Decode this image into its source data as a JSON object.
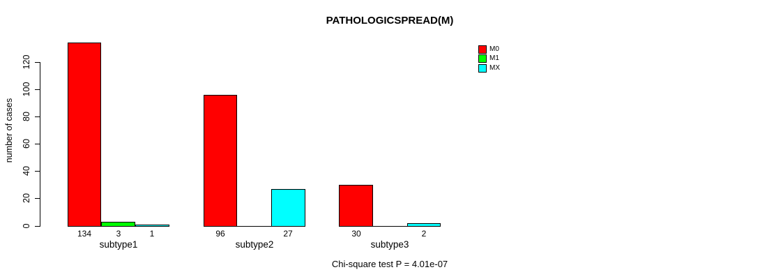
{
  "chart_data": {
    "type": "bar",
    "title": "PATHOLOGICSPREAD(M)",
    "xlabel": "",
    "ylabel": "number of cases",
    "categories": [
      "subtype1",
      "subtype2",
      "subtype3"
    ],
    "series": [
      {
        "name": "M0",
        "color": "#FF0000",
        "values": [
          134,
          96,
          30
        ]
      },
      {
        "name": "M1",
        "color": "#00FF00",
        "values": [
          3,
          0,
          0
        ]
      },
      {
        "name": "MX",
        "color": "#00FFFF",
        "values": [
          1,
          27,
          2
        ]
      }
    ],
    "bar_value_labels": {
      "subtype1": [
        "134",
        "3",
        "1"
      ],
      "subtype2": [
        "96",
        "",
        "27"
      ],
      "subtype3": [
        "30",
        "",
        "2"
      ]
    },
    "ylim": [
      0,
      120
    ],
    "yticks": [
      0,
      20,
      40,
      60,
      80,
      100,
      120
    ],
    "grid": false,
    "legend_position": "top-right",
    "annotation": "Chi-square test P = 4.01e-07",
    "colors": {
      "background": "#FFFFFF",
      "axis": "#000000",
      "text": "#000000"
    }
  }
}
